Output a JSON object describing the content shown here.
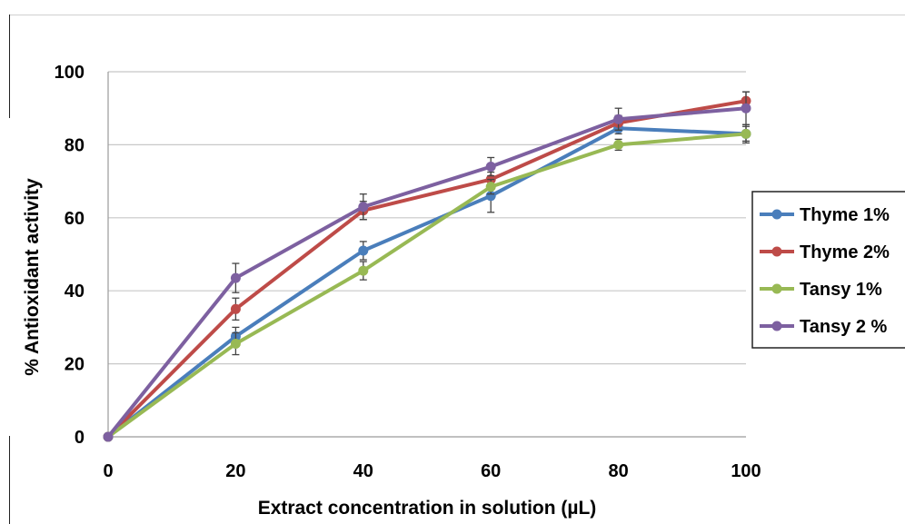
{
  "chart_data": {
    "type": "line",
    "xlabel": "Extract concentration in solution (µL)",
    "ylabel": "% Antioxidant activity",
    "xlim": [
      0,
      100
    ],
    "ylim": [
      0,
      100
    ],
    "x_ticks": [
      0,
      20,
      40,
      60,
      80,
      100
    ],
    "y_ticks": [
      0,
      20,
      40,
      60,
      80,
      100
    ],
    "grid": "horizontal",
    "legend_position": "right",
    "x": [
      0,
      20,
      40,
      60,
      80,
      100
    ],
    "series": [
      {
        "name": "Thyme 1%",
        "color": "#4A7EBB",
        "values": [
          0,
          27.5,
          51,
          66,
          84.5,
          83
        ],
        "errors": [
          0,
          2.5,
          2.5,
          4.5,
          1.5,
          2
        ]
      },
      {
        "name": "Thyme 2%",
        "color": "#BE4B48",
        "values": [
          0,
          35,
          62,
          70.5,
          86,
          92
        ],
        "errors": [
          0,
          3,
          2.5,
          2,
          2,
          2.5
        ]
      },
      {
        "name": "Tansy 1%",
        "color": "#98B954",
        "values": [
          0,
          25.5,
          45.5,
          68.5,
          80,
          83
        ],
        "errors": [
          0,
          3,
          2.5,
          2,
          1.5,
          2.5
        ]
      },
      {
        "name": "Tansy 2 %",
        "color": "#7D60A0",
        "values": [
          0,
          43.5,
          63,
          74,
          87,
          90
        ],
        "errors": [
          0,
          4,
          3.5,
          2.5,
          3,
          4.5
        ]
      }
    ]
  }
}
